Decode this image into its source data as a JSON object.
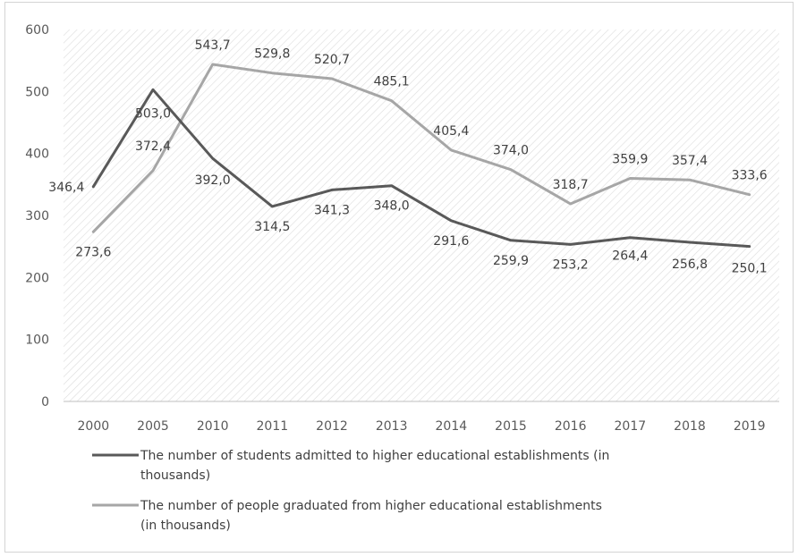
{
  "chart_data": {
    "type": "line",
    "categories": [
      "2000",
      "2005",
      "2010",
      "2011",
      "2012",
      "2013",
      "2014",
      "2015",
      "2016",
      "2017",
      "2018",
      "2019"
    ],
    "ylim": [
      0,
      600
    ],
    "yticks": [
      0,
      100,
      200,
      300,
      400,
      500,
      600
    ],
    "grid": "hatched plot background, no gridlines",
    "legend_position": "bottom",
    "series": [
      {
        "name": "The number of students admitted to higher educational establishments (in thousands)",
        "legend_lines": [
          "The number of students admitted to higher educational establishments (in",
          "thousands)"
        ],
        "color": "#595959",
        "values": [
          346.4,
          503.0,
          392.0,
          314.5,
          341.3,
          348.0,
          291.6,
          259.9,
          253.2,
          264.4,
          256.8,
          250.1
        ],
        "labels": [
          "346,4",
          "503,0",
          "392,0",
          "314,5",
          "341,3",
          "348,0",
          "291,6",
          "259,9",
          "253,2",
          "264,4",
          "256,8",
          "250,1"
        ]
      },
      {
        "name": "The number of people graduated from higher educational establishments (in thousands)",
        "legend_lines": [
          "The number of people graduated from higher educational establishments",
          "(in thousands)"
        ],
        "color": "#a6a6a6",
        "values": [
          273.6,
          372.4,
          543.7,
          529.8,
          520.7,
          485.1,
          405.4,
          374.0,
          318.7,
          359.9,
          357.4,
          333.6
        ],
        "labels": [
          "273,6",
          "372,4",
          "543,7",
          "529,8",
          "520,7",
          "485,1",
          "405,4",
          "374,0",
          "318,7",
          "359,9",
          "357,4",
          "333,6"
        ]
      }
    ]
  }
}
